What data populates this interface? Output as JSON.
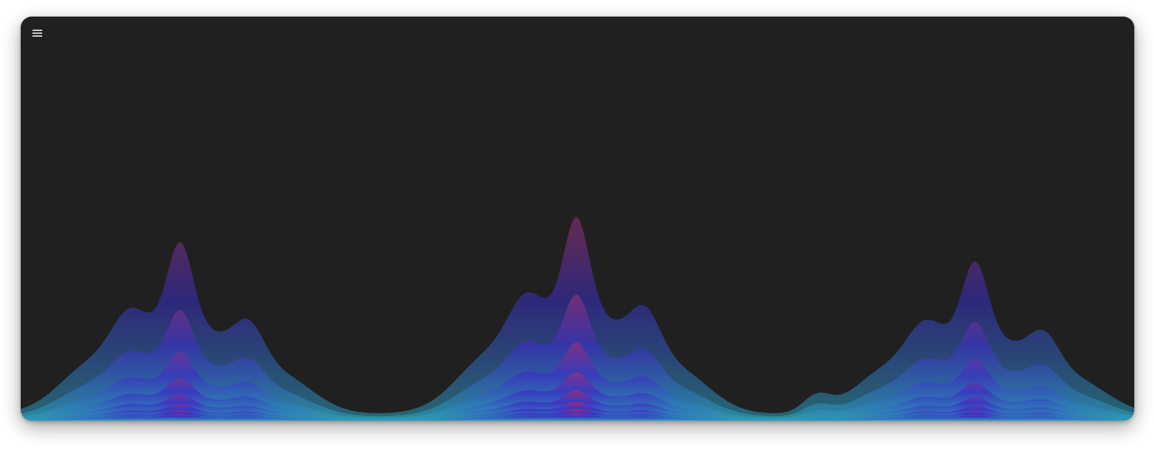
{
  "toolbar": {
    "menu_icon": "hamburger-menu-icon"
  },
  "visualizer": {
    "type": "stacked-wave-visualizer",
    "colors": {
      "background": "#202020",
      "bottom": "#2aa3b5",
      "mid": "#3a2fc4",
      "peak": "#e8323e"
    },
    "peaks": [
      {
        "id": "left-peak",
        "center": 0.143,
        "amplitude": 0.63
      },
      {
        "id": "center-peak",
        "center": 0.499,
        "amplitude": 0.72
      },
      {
        "id": "right-peak",
        "center": 0.857,
        "amplitude": 0.56
      }
    ]
  }
}
